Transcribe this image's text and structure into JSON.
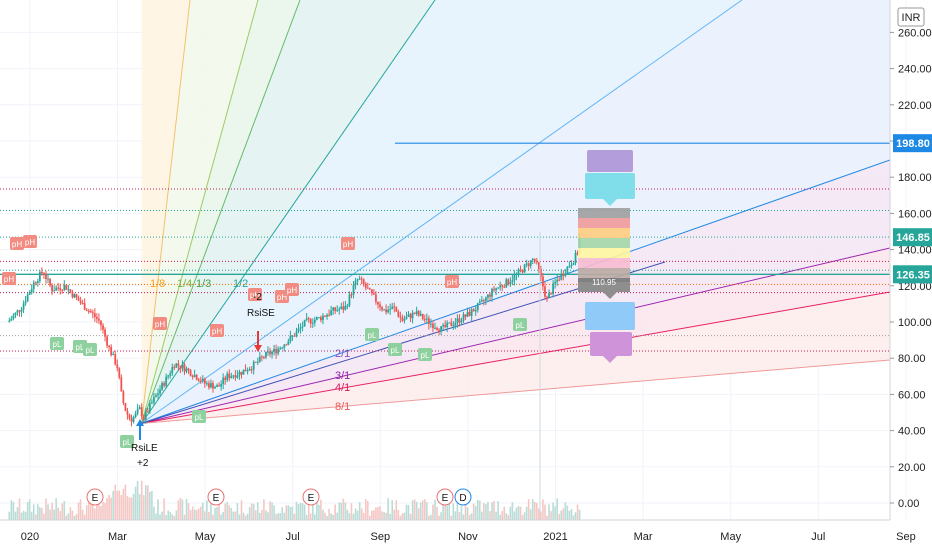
{
  "currency_badge": "INR",
  "chart_data": {
    "type": "candlestick",
    "y_ticks": [
      0,
      20,
      40,
      60,
      80,
      100,
      120,
      140,
      160,
      180,
      200,
      220,
      240,
      260
    ],
    "y_tick_labels": [
      "0.00",
      "20.00",
      "40.00",
      "60.00",
      "80.00",
      "100.00",
      "120.00",
      "140.00",
      "160.00",
      "180.00",
      "200.00",
      "220.00",
      "240.00",
      "260.00"
    ],
    "x_ticks": [
      {
        "label": "020",
        "x": 0.5
      },
      {
        "label": "Mar",
        "x": 2.5
      },
      {
        "label": "May",
        "x": 4.5
      },
      {
        "label": "Jul",
        "x": 6.5
      },
      {
        "label": "Sep",
        "x": 8.5
      },
      {
        "label": "Nov",
        "x": 10.5
      },
      {
        "label": "2021",
        "x": 12.5
      },
      {
        "label": "Mar",
        "x": 14.5
      },
      {
        "label": "May",
        "x": 16.5
      },
      {
        "label": "Jul",
        "x": 18.5
      },
      {
        "label": "Sep",
        "x": 20.5
      }
    ],
    "price_path": [
      [
        0.0,
        100
      ],
      [
        0.3,
        108
      ],
      [
        0.6,
        122
      ],
      [
        0.8,
        128
      ],
      [
        1.0,
        118
      ],
      [
        1.3,
        120
      ],
      [
        1.6,
        112
      ],
      [
        1.9,
        105
      ],
      [
        2.1,
        100
      ],
      [
        2.3,
        86
      ],
      [
        2.5,
        75
      ],
      [
        2.6,
        58
      ],
      [
        2.7,
        50
      ],
      [
        2.8,
        46
      ],
      [
        2.9,
        48
      ],
      [
        3.0,
        52
      ],
      [
        3.1,
        47
      ],
      [
        3.3,
        56
      ],
      [
        3.6,
        68
      ],
      [
        3.8,
        77
      ],
      [
        4.0,
        75
      ],
      [
        4.3,
        70
      ],
      [
        4.5,
        66
      ],
      [
        4.8,
        64
      ],
      [
        5.0,
        70
      ],
      [
        5.3,
        72
      ],
      [
        5.6,
        76
      ],
      [
        5.9,
        82
      ],
      [
        6.1,
        84
      ],
      [
        6.3,
        88
      ],
      [
        6.5,
        92
      ],
      [
        6.8,
        100
      ],
      [
        7.1,
        102
      ],
      [
        7.4,
        106
      ],
      [
        7.7,
        108
      ],
      [
        7.9,
        120
      ],
      [
        8.0,
        124
      ],
      [
        8.2,
        118
      ],
      [
        8.4,
        112
      ],
      [
        8.6,
        106
      ],
      [
        8.8,
        108
      ],
      [
        9.0,
        101
      ],
      [
        9.3,
        105
      ],
      [
        9.6,
        100
      ],
      [
        9.9,
        96
      ],
      [
        10.2,
        100
      ],
      [
        10.5,
        104
      ],
      [
        10.8,
        110
      ],
      [
        11.1,
        118
      ],
      [
        11.4,
        122
      ],
      [
        11.7,
        128
      ],
      [
        12.0,
        135
      ],
      [
        12.1,
        130
      ],
      [
        12.3,
        112
      ],
      [
        12.5,
        122
      ],
      [
        12.7,
        128
      ],
      [
        12.9,
        134
      ],
      [
        13.0,
        138
      ],
      [
        13.05,
        146.85
      ]
    ],
    "current_price": 146.85,
    "price_levels": [
      198.8,
      126.35
    ],
    "dotted_levels": [
      {
        "value": 173.5,
        "color": "#c2185b"
      },
      {
        "value": 161.6,
        "color": "#26a69a"
      },
      {
        "value": 146.9,
        "color": "#26a69a"
      },
      {
        "value": 133.5,
        "color": "#c2185b"
      },
      {
        "value": 128.6,
        "color": "#26a69a"
      },
      {
        "value": 120.8,
        "color": "#ef6c00"
      },
      {
        "value": 116.2,
        "color": "#c2185b"
      },
      {
        "value": 92.5,
        "color": "#9e9e9e"
      },
      {
        "value": 84.0,
        "color": "#c2185b"
      }
    ],
    "gann_fan": {
      "origin": [
        3.05,
        44
      ],
      "labels_upper": [
        "1/8",
        "1/4",
        "1/3",
        "1/2"
      ],
      "labels_lower": [
        "2/1",
        "3/1",
        "4/1",
        "8/1"
      ]
    },
    "pivot_labels": [
      "pH",
      "pH",
      "pH",
      "pH",
      "pH",
      "pH",
      "pH",
      "pH",
      "pH",
      "pH",
      "pL",
      "pL",
      "pL",
      "pL",
      "pL",
      "pL",
      "pL",
      "pL",
      "pL"
    ],
    "strategy_signals": [
      {
        "text": "RsiLE",
        "qty": "+2"
      },
      {
        "text": "RsiSE",
        "qty": "-2"
      }
    ],
    "earnings_markers": [
      "E",
      "E",
      "E",
      "E"
    ],
    "dividend_markers": [
      "D"
    ],
    "right_labels": [
      {
        "text": "198.80",
        "value": 198.8,
        "color": "#1e88e5"
      },
      {
        "text": "146.85",
        "value": 146.85,
        "color": "#26a69a"
      },
      {
        "text": "126.35",
        "value": 126.35,
        "color": "#26a69a"
      }
    ],
    "projection_box_value": "110.95"
  },
  "colors": {
    "up": "#26a69a",
    "down": "#ef5350",
    "accent_blue": "#1e88e5"
  }
}
